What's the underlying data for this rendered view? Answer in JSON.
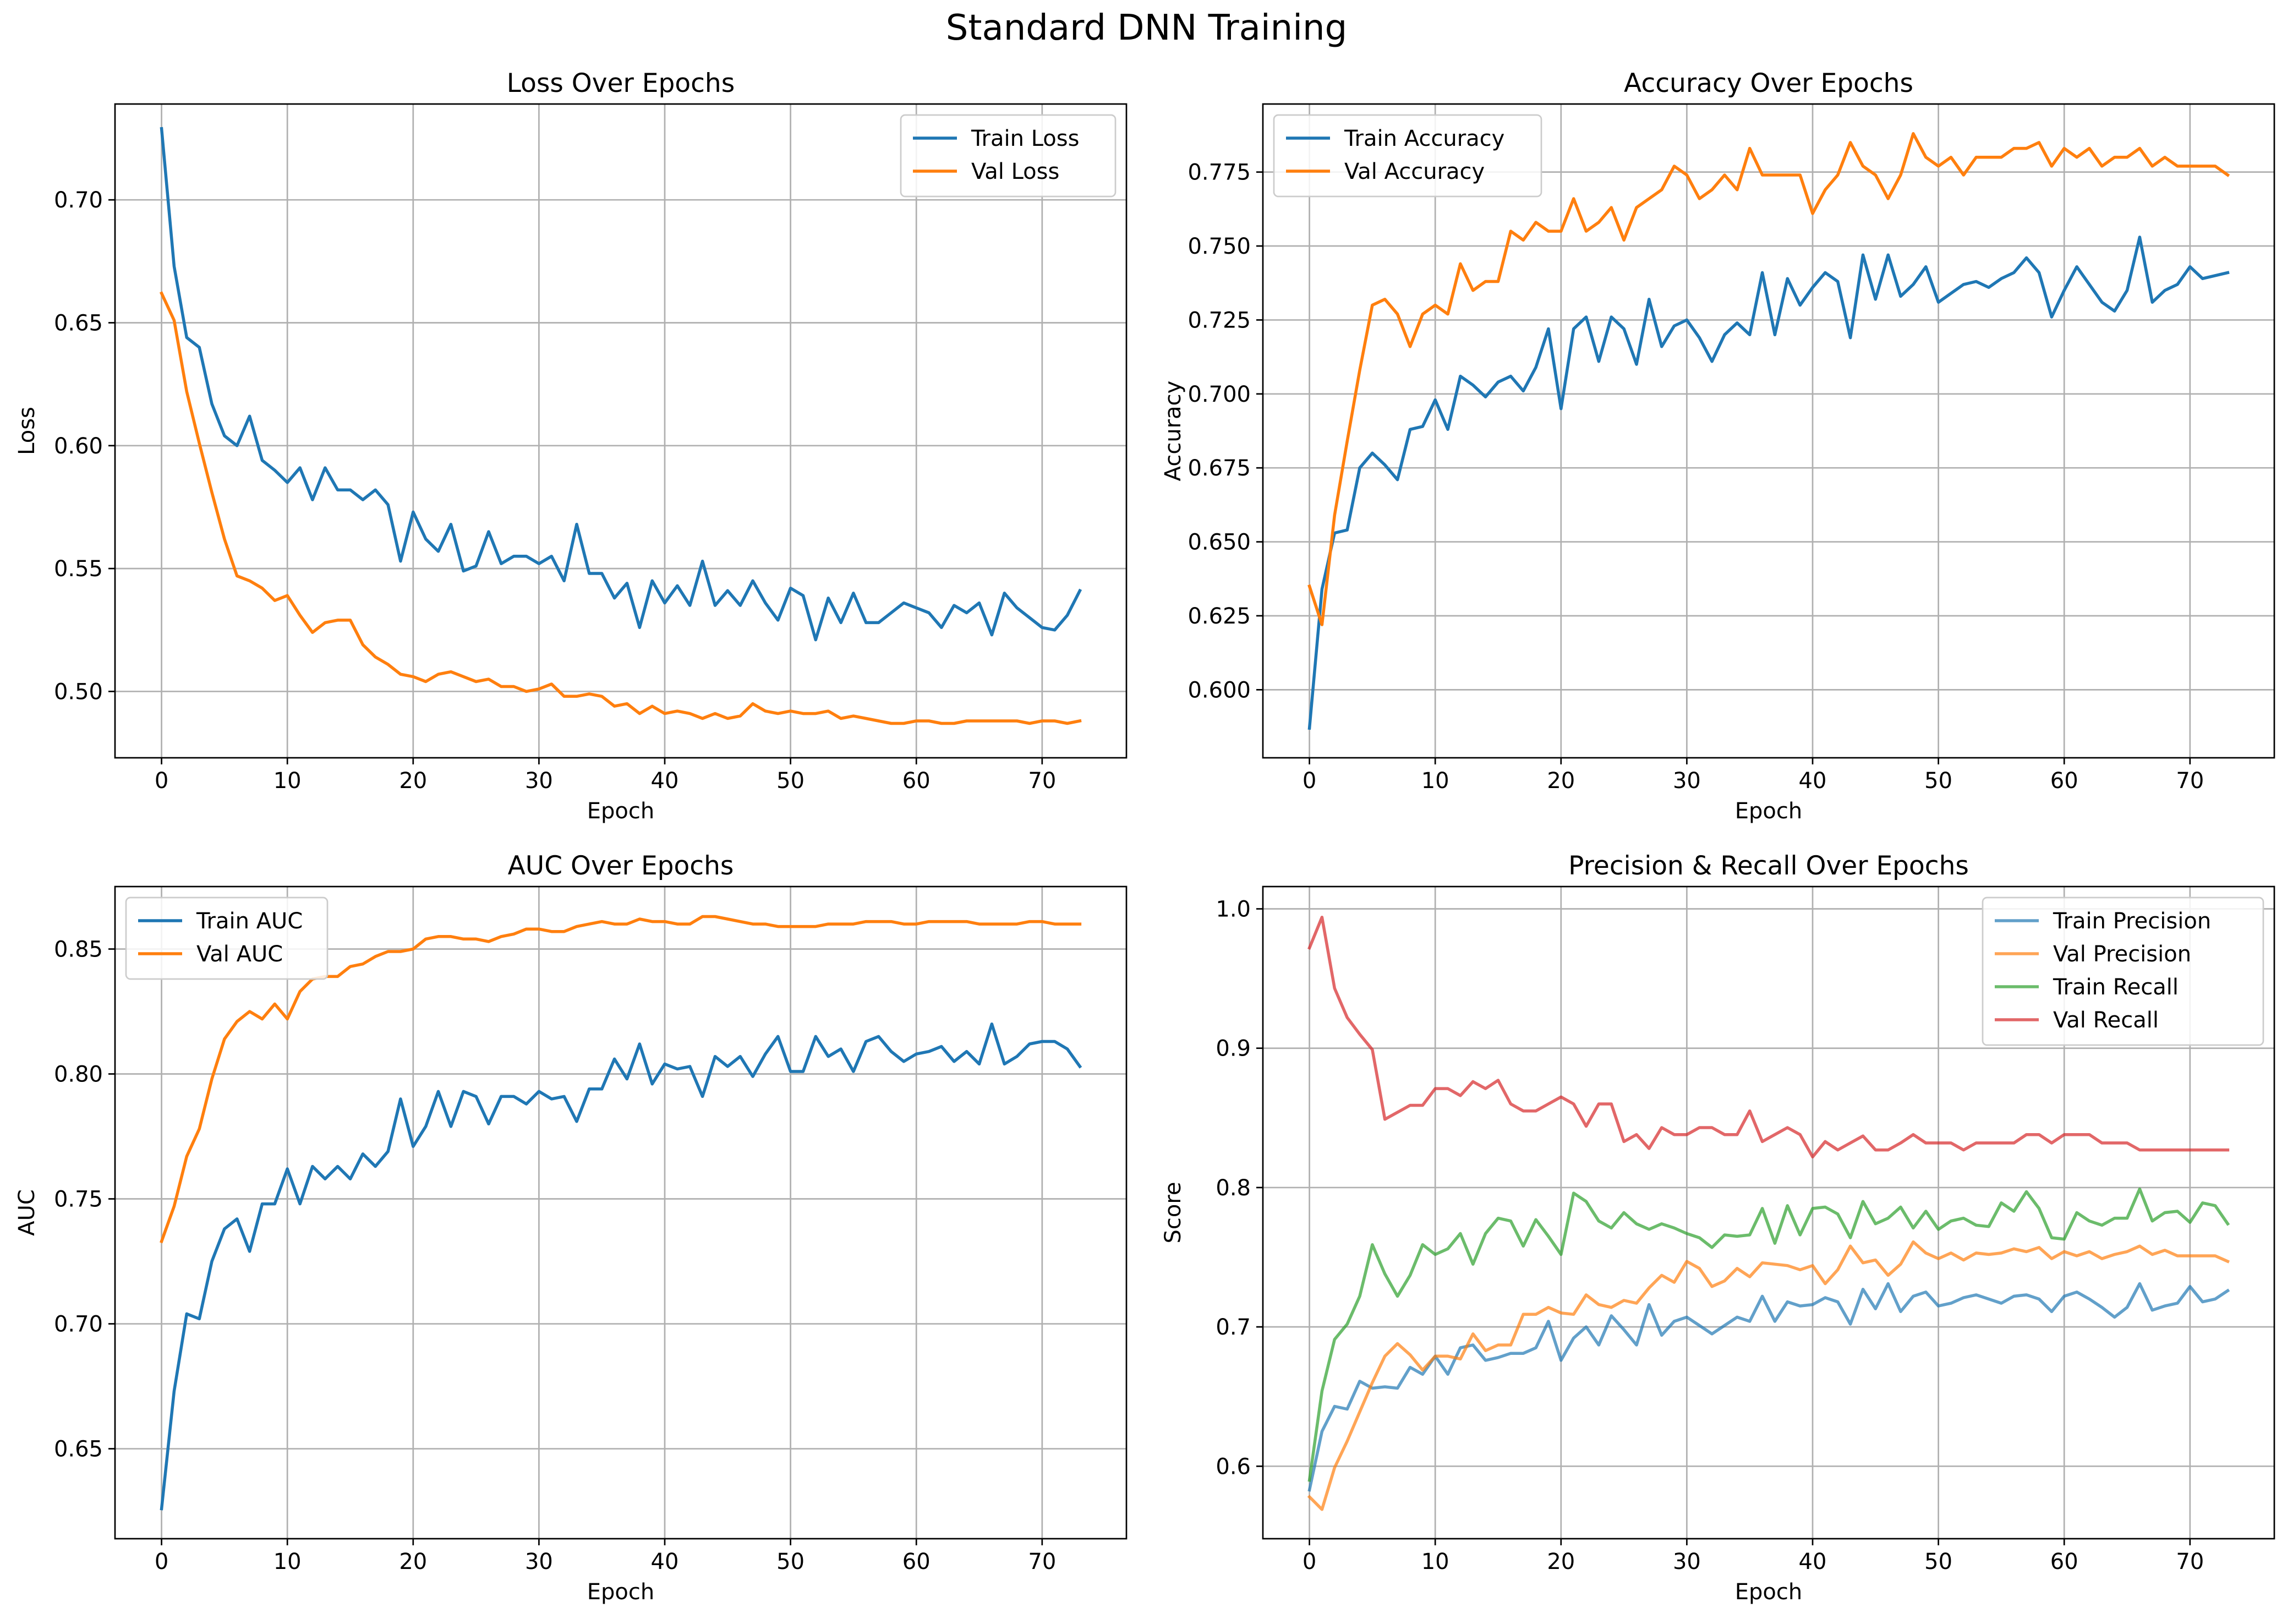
{
  "figure": {
    "suptitle": "Standard DNN Training"
  },
  "colors": {
    "blue": "#1f77b4",
    "orange": "#ff7f0e",
    "green": "#2ca02c",
    "red": "#d62728",
    "grid": "#b0b0b0",
    "axis": "#000000"
  },
  "chart_data": [
    {
      "id": "loss",
      "type": "line",
      "title": "Loss Over Epochs",
      "xlabel": "Epoch",
      "ylabel": "Loss",
      "xlim": [
        -3.7,
        76.7
      ],
      "ylim": [
        0.473,
        0.739
      ],
      "xticks": [
        0,
        10,
        20,
        30,
        40,
        50,
        60,
        70
      ],
      "yticks": [
        0.5,
        0.55,
        0.6,
        0.65,
        0.7
      ],
      "ytick_labels": [
        "0.50",
        "0.55",
        "0.60",
        "0.65",
        "0.70"
      ],
      "grid": true,
      "legend_loc": "upper right",
      "series": [
        {
          "name": "Train Loss",
          "color": "#1f77b4",
          "alpha": 1,
          "values": [
            0.729,
            0.673,
            0.644,
            0.64,
            0.617,
            0.604,
            0.6,
            0.612,
            0.594,
            0.59,
            0.585,
            0.591,
            0.578,
            0.591,
            0.582,
            0.582,
            0.578,
            0.582,
            0.576,
            0.553,
            0.573,
            0.562,
            0.557,
            0.568,
            0.549,
            0.551,
            0.565,
            0.552,
            0.555,
            0.555,
            0.552,
            0.555,
            0.545,
            0.568,
            0.548,
            0.548,
            0.538,
            0.544,
            0.526,
            0.545,
            0.536,
            0.543,
            0.535,
            0.553,
            0.535,
            0.541,
            0.535,
            0.545,
            0.536,
            0.529,
            0.542,
            0.539,
            0.521,
            0.538,
            0.528,
            0.54,
            0.528,
            0.528,
            0.532,
            0.536,
            0.534,
            0.532,
            0.526,
            0.535,
            0.532,
            0.536,
            0.523,
            0.54,
            0.534,
            0.53,
            0.526,
            0.525,
            0.531,
            0.541
          ]
        },
        {
          "name": "Val Loss",
          "color": "#ff7f0e",
          "alpha": 1,
          "values": [
            0.662,
            0.651,
            0.622,
            0.601,
            0.581,
            0.562,
            0.547,
            0.545,
            0.542,
            0.537,
            0.539,
            0.531,
            0.524,
            0.528,
            0.529,
            0.529,
            0.519,
            0.514,
            0.511,
            0.507,
            0.506,
            0.504,
            0.507,
            0.508,
            0.506,
            0.504,
            0.505,
            0.502,
            0.502,
            0.5,
            0.501,
            0.503,
            0.498,
            0.498,
            0.499,
            0.498,
            0.494,
            0.495,
            0.491,
            0.494,
            0.491,
            0.492,
            0.491,
            0.489,
            0.491,
            0.489,
            0.49,
            0.495,
            0.492,
            0.491,
            0.492,
            0.491,
            0.491,
            0.492,
            0.489,
            0.49,
            0.489,
            0.488,
            0.487,
            0.487,
            0.488,
            0.488,
            0.487,
            0.487,
            0.488,
            0.488,
            0.488,
            0.488,
            0.488,
            0.487,
            0.488,
            0.488,
            0.487,
            0.488
          ]
        }
      ]
    },
    {
      "id": "accuracy",
      "type": "line",
      "title": "Accuracy Over Epochs",
      "xlabel": "Epoch",
      "ylabel": "Accuracy",
      "xlim": [
        -3.7,
        76.7
      ],
      "ylim": [
        0.577,
        0.798
      ],
      "xticks": [
        0,
        10,
        20,
        30,
        40,
        50,
        60,
        70
      ],
      "yticks": [
        0.6,
        0.625,
        0.65,
        0.675,
        0.7,
        0.725,
        0.75,
        0.775
      ],
      "ytick_labels": [
        "0.600",
        "0.625",
        "0.650",
        "0.675",
        "0.700",
        "0.725",
        "0.750",
        "0.775"
      ],
      "grid": true,
      "legend_loc": "upper left",
      "series": [
        {
          "name": "Train Accuracy",
          "color": "#1f77b4",
          "alpha": 1,
          "values": [
            0.587,
            0.634,
            0.653,
            0.654,
            0.675,
            0.68,
            0.676,
            0.671,
            0.688,
            0.689,
            0.698,
            0.688,
            0.706,
            0.703,
            0.699,
            0.704,
            0.706,
            0.701,
            0.709,
            0.722,
            0.695,
            0.722,
            0.726,
            0.711,
            0.726,
            0.722,
            0.71,
            0.732,
            0.716,
            0.723,
            0.725,
            0.719,
            0.711,
            0.72,
            0.724,
            0.72,
            0.741,
            0.72,
            0.739,
            0.73,
            0.736,
            0.741,
            0.738,
            0.719,
            0.747,
            0.732,
            0.747,
            0.733,
            0.737,
            0.743,
            0.731,
            0.734,
            0.737,
            0.738,
            0.736,
            0.739,
            0.741,
            0.746,
            0.741,
            0.726,
            0.735,
            0.743,
            0.737,
            0.731,
            0.728,
            0.735,
            0.753,
            0.731,
            0.735,
            0.737,
            0.743,
            0.739,
            0.74,
            0.741
          ]
        },
        {
          "name": "Val Accuracy",
          "color": "#ff7f0e",
          "alpha": 1,
          "values": [
            0.635,
            0.622,
            0.659,
            0.684,
            0.708,
            0.73,
            0.732,
            0.727,
            0.716,
            0.727,
            0.73,
            0.727,
            0.744,
            0.735,
            0.738,
            0.738,
            0.755,
            0.752,
            0.758,
            0.755,
            0.755,
            0.766,
            0.755,
            0.758,
            0.763,
            0.752,
            0.763,
            0.766,
            0.769,
            0.777,
            0.774,
            0.766,
            0.769,
            0.774,
            0.769,
            0.783,
            0.774,
            0.774,
            0.774,
            0.774,
            0.761,
            0.769,
            0.774,
            0.785,
            0.777,
            0.774,
            0.766,
            0.774,
            0.788,
            0.78,
            0.777,
            0.78,
            0.774,
            0.78,
            0.78,
            0.78,
            0.783,
            0.783,
            0.785,
            0.777,
            0.783,
            0.78,
            0.783,
            0.777,
            0.78,
            0.78,
            0.783,
            0.777,
            0.78,
            0.777,
            0.777,
            0.777,
            0.777,
            0.774
          ]
        }
      ]
    },
    {
      "id": "auc",
      "type": "line",
      "title": "AUC Over Epochs",
      "xlabel": "Epoch",
      "ylabel": "AUC",
      "xlim": [
        -3.7,
        76.7
      ],
      "ylim": [
        0.614,
        0.875
      ],
      "xticks": [
        0,
        10,
        20,
        30,
        40,
        50,
        60,
        70
      ],
      "yticks": [
        0.65,
        0.7,
        0.75,
        0.8,
        0.85
      ],
      "ytick_labels": [
        "0.65",
        "0.70",
        "0.75",
        "0.80",
        "0.85"
      ],
      "grid": true,
      "legend_loc": "upper left",
      "series": [
        {
          "name": "Train AUC",
          "color": "#1f77b4",
          "alpha": 1,
          "values": [
            0.626,
            0.673,
            0.704,
            0.702,
            0.725,
            0.738,
            0.742,
            0.729,
            0.748,
            0.748,
            0.762,
            0.748,
            0.763,
            0.758,
            0.763,
            0.758,
            0.768,
            0.763,
            0.769,
            0.79,
            0.771,
            0.779,
            0.793,
            0.779,
            0.793,
            0.791,
            0.78,
            0.791,
            0.791,
            0.788,
            0.793,
            0.79,
            0.791,
            0.781,
            0.794,
            0.794,
            0.806,
            0.798,
            0.812,
            0.796,
            0.804,
            0.802,
            0.803,
            0.791,
            0.807,
            0.803,
            0.807,
            0.799,
            0.808,
            0.815,
            0.801,
            0.801,
            0.815,
            0.807,
            0.81,
            0.801,
            0.813,
            0.815,
            0.809,
            0.805,
            0.808,
            0.809,
            0.811,
            0.805,
            0.809,
            0.804,
            0.82,
            0.804,
            0.807,
            0.812,
            0.813,
            0.813,
            0.81,
            0.803
          ]
        },
        {
          "name": "Val AUC",
          "color": "#ff7f0e",
          "alpha": 1,
          "values": [
            0.733,
            0.747,
            0.767,
            0.778,
            0.798,
            0.814,
            0.821,
            0.825,
            0.822,
            0.828,
            0.822,
            0.833,
            0.838,
            0.839,
            0.839,
            0.843,
            0.844,
            0.847,
            0.849,
            0.849,
            0.85,
            0.854,
            0.855,
            0.855,
            0.854,
            0.854,
            0.853,
            0.855,
            0.856,
            0.858,
            0.858,
            0.857,
            0.857,
            0.859,
            0.86,
            0.861,
            0.86,
            0.86,
            0.862,
            0.861,
            0.861,
            0.86,
            0.86,
            0.863,
            0.863,
            0.862,
            0.861,
            0.86,
            0.86,
            0.859,
            0.859,
            0.859,
            0.859,
            0.86,
            0.86,
            0.86,
            0.861,
            0.861,
            0.861,
            0.86,
            0.86,
            0.861,
            0.861,
            0.861,
            0.861,
            0.86,
            0.86,
            0.86,
            0.86,
            0.861,
            0.861,
            0.86,
            0.86,
            0.86
          ]
        }
      ]
    },
    {
      "id": "prec_recall",
      "type": "line",
      "title": "Precision & Recall Over Epochs",
      "xlabel": "Epoch",
      "ylabel": "Score",
      "xlim": [
        -3.7,
        76.7
      ],
      "ylim": [
        0.548,
        1.016
      ],
      "xticks": [
        0,
        10,
        20,
        30,
        40,
        50,
        60,
        70
      ],
      "yticks": [
        0.6,
        0.7,
        0.8,
        0.9,
        1.0
      ],
      "ytick_labels": [
        "0.6",
        "0.7",
        "0.8",
        "0.9",
        "1.0"
      ],
      "grid": true,
      "legend_loc": "upper right",
      "series": [
        {
          "name": "Train Precision",
          "color": "#1f77b4",
          "alpha": 0.7,
          "values": [
            0.583,
            0.625,
            0.643,
            0.641,
            0.661,
            0.656,
            0.657,
            0.656,
            0.671,
            0.666,
            0.679,
            0.666,
            0.685,
            0.687,
            0.676,
            0.678,
            0.681,
            0.681,
            0.685,
            0.704,
            0.676,
            0.692,
            0.7,
            0.687,
            0.708,
            0.698,
            0.687,
            0.716,
            0.694,
            0.704,
            0.707,
            0.701,
            0.695,
            0.701,
            0.707,
            0.704,
            0.722,
            0.704,
            0.718,
            0.715,
            0.716,
            0.721,
            0.718,
            0.702,
            0.727,
            0.713,
            0.731,
            0.711,
            0.722,
            0.725,
            0.715,
            0.717,
            0.721,
            0.723,
            0.72,
            0.717,
            0.722,
            0.723,
            0.72,
            0.711,
            0.722,
            0.725,
            0.72,
            0.714,
            0.707,
            0.714,
            0.731,
            0.712,
            0.715,
            0.717,
            0.729,
            0.718,
            0.72,
            0.726
          ]
        },
        {
          "name": "Val Precision",
          "color": "#ff7f0e",
          "alpha": 0.7,
          "values": [
            0.578,
            0.569,
            0.599,
            0.618,
            0.639,
            0.66,
            0.679,
            0.688,
            0.68,
            0.669,
            0.679,
            0.679,
            0.677,
            0.695,
            0.683,
            0.687,
            0.687,
            0.709,
            0.709,
            0.714,
            0.71,
            0.709,
            0.723,
            0.716,
            0.714,
            0.719,
            0.717,
            0.728,
            0.737,
            0.732,
            0.747,
            0.742,
            0.729,
            0.733,
            0.742,
            0.736,
            0.746,
            0.745,
            0.744,
            0.741,
            0.744,
            0.731,
            0.741,
            0.758,
            0.746,
            0.748,
            0.737,
            0.745,
            0.761,
            0.753,
            0.749,
            0.753,
            0.748,
            0.753,
            0.752,
            0.753,
            0.756,
            0.754,
            0.757,
            0.749,
            0.754,
            0.751,
            0.754,
            0.749,
            0.752,
            0.754,
            0.758,
            0.752,
            0.755,
            0.751,
            0.751,
            0.751,
            0.751,
            0.747
          ]
        },
        {
          "name": "Train Recall",
          "color": "#2ca02c",
          "alpha": 0.7,
          "values": [
            0.59,
            0.654,
            0.691,
            0.702,
            0.722,
            0.759,
            0.738,
            0.722,
            0.737,
            0.759,
            0.752,
            0.756,
            0.767,
            0.745,
            0.767,
            0.778,
            0.776,
            0.758,
            0.777,
            0.765,
            0.752,
            0.796,
            0.79,
            0.776,
            0.771,
            0.782,
            0.774,
            0.77,
            0.774,
            0.771,
            0.767,
            0.764,
            0.757,
            0.766,
            0.765,
            0.766,
            0.785,
            0.76,
            0.787,
            0.766,
            0.785,
            0.786,
            0.781,
            0.764,
            0.79,
            0.774,
            0.778,
            0.786,
            0.771,
            0.783,
            0.77,
            0.776,
            0.778,
            0.773,
            0.772,
            0.789,
            0.783,
            0.797,
            0.785,
            0.764,
            0.763,
            0.782,
            0.776,
            0.773,
            0.778,
            0.778,
            0.799,
            0.776,
            0.782,
            0.783,
            0.775,
            0.789,
            0.787,
            0.774
          ]
        },
        {
          "name": "Val Recall",
          "color": "#d62728",
          "alpha": 0.7,
          "values": [
            0.972,
            0.994,
            0.943,
            0.922,
            0.91,
            0.899,
            0.849,
            0.854,
            0.859,
            0.859,
            0.871,
            0.871,
            0.866,
            0.876,
            0.871,
            0.877,
            0.86,
            0.855,
            0.855,
            0.86,
            0.865,
            0.86,
            0.844,
            0.86,
            0.86,
            0.833,
            0.838,
            0.828,
            0.843,
            0.838,
            0.838,
            0.843,
            0.843,
            0.838,
            0.838,
            0.855,
            0.833,
            0.838,
            0.843,
            0.838,
            0.822,
            0.833,
            0.827,
            0.832,
            0.837,
            0.827,
            0.827,
            0.832,
            0.838,
            0.832,
            0.832,
            0.832,
            0.827,
            0.832,
            0.832,
            0.832,
            0.832,
            0.838,
            0.838,
            0.832,
            0.838,
            0.838,
            0.838,
            0.832,
            0.832,
            0.832,
            0.827,
            0.827,
            0.827,
            0.827,
            0.827,
            0.827,
            0.827,
            0.827
          ]
        }
      ]
    }
  ]
}
